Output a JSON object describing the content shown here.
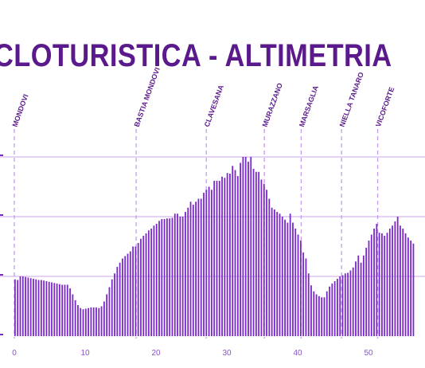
{
  "title": "CLOTURISTICA - ALTIMETRIA",
  "colors": {
    "title": "#5b1a8c",
    "bars": "#7a28c8",
    "grid": "#c9a7ee",
    "marker": "#c79af0",
    "labels": "#5b1a8c"
  },
  "chart_data": {
    "type": "bar",
    "title": "CLOTURISTICA - ALTIMETRIA",
    "xlabel": "",
    "ylabel": "",
    "xlim": [
      0,
      57.5
    ],
    "ylim": [
      0,
      4
    ],
    "grid": true,
    "x_ticks": [
      "0",
      "10",
      "20",
      "30",
      "40",
      "50"
    ],
    "x_tick_values": [
      0,
      10,
      20,
      30,
      40,
      50
    ],
    "y_gridlines": [
      1,
      2,
      3
    ],
    "annotations": [
      {
        "label": "MONDOVI",
        "x": 0
      },
      {
        "label": "BASTIA MONDOVI",
        "x": 17.2
      },
      {
        "label": "CLAVESANA",
        "x": 27.1
      },
      {
        "label": "MURAZZANO",
        "x": 35.3
      },
      {
        "label": "MARSAGLIA",
        "x": 40.5
      },
      {
        "label": "NIELLA TANARO",
        "x": 46.2
      },
      {
        "label": "VICOFORTE",
        "x": 51.3
      }
    ],
    "values": [
      0.95,
      0.94,
      1.0,
      1.0,
      0.99,
      0.98,
      0.97,
      0.96,
      0.95,
      0.94,
      0.94,
      0.93,
      0.92,
      0.91,
      0.9,
      0.89,
      0.88,
      0.87,
      0.86,
      0.86,
      0.86,
      0.8,
      0.7,
      0.6,
      0.52,
      0.47,
      0.45,
      0.46,
      0.47,
      0.48,
      0.48,
      0.48,
      0.47,
      0.5,
      0.58,
      0.7,
      0.82,
      0.95,
      1.05,
      1.16,
      1.23,
      1.3,
      1.34,
      1.38,
      1.42,
      1.5,
      1.5,
      1.56,
      1.63,
      1.68,
      1.72,
      1.77,
      1.8,
      1.85,
      1.88,
      1.93,
      1.96,
      1.96,
      1.97,
      1.97,
      1.98,
      2.05,
      2.05,
      2.0,
      2.0,
      2.08,
      2.15,
      2.25,
      2.2,
      2.25,
      2.3,
      2.3,
      2.4,
      2.45,
      2.5,
      2.45,
      2.6,
      2.6,
      2.6,
      2.67,
      2.65,
      2.73,
      2.72,
      2.85,
      2.78,
      2.68,
      2.9,
      3.0,
      3.0,
      2.92,
      3.0,
      2.8,
      2.75,
      2.75,
      2.62,
      2.55,
      2.45,
      2.3,
      2.15,
      2.12,
      2.08,
      2.05,
      2.0,
      1.95,
      1.9,
      2.05,
      1.9,
      1.8,
      1.7,
      1.6,
      1.4,
      1.3,
      1.05,
      0.85,
      0.75,
      0.7,
      0.67,
      0.65,
      0.65,
      0.75,
      0.83,
      0.88,
      0.92,
      0.96,
      1.0,
      1.02,
      1.05,
      1.06,
      1.1,
      1.15,
      1.25,
      1.35,
      1.23,
      1.35,
      1.48,
      1.6,
      1.7,
      1.8,
      1.88,
      1.73,
      1.72,
      1.68,
      1.73,
      1.8,
      1.85,
      1.92,
      2.0,
      1.85,
      1.8,
      1.72,
      1.65,
      1.6,
      1.55
    ],
    "x_step": 0.37
  }
}
